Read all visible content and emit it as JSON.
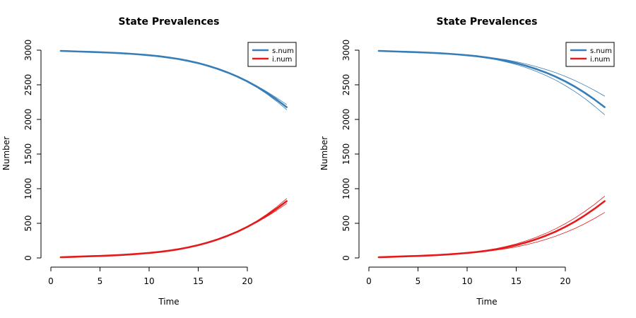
{
  "chart_data": [
    {
      "type": "line",
      "title": "State Prevalences",
      "xlabel": "Time",
      "ylabel": "Number",
      "xlim": [
        0,
        24
      ],
      "ylim": [
        0,
        3000
      ],
      "xticks": [
        0,
        5,
        10,
        15,
        20
      ],
      "yticks": [
        0,
        500,
        1000,
        1500,
        2000,
        2500,
        3000
      ],
      "grid": false,
      "legend_position": "top-right",
      "legend": [
        {
          "label": "s.num",
          "color": "#377EB8"
        },
        {
          "label": "i.num",
          "color": "#E41A1C"
        }
      ],
      "x": [
        1,
        2,
        3,
        4,
        5,
        6,
        7,
        8,
        9,
        10,
        11,
        12,
        13,
        14,
        15,
        16,
        17,
        18,
        19,
        20,
        21,
        22,
        23,
        24
      ],
      "series": [
        {
          "name": "s.num",
          "role": "mean",
          "color": "#377EB8",
          "values": [
            2990,
            2985,
            2980,
            2975,
            2970,
            2964,
            2957,
            2949,
            2939,
            2927,
            2912,
            2894,
            2872,
            2845,
            2813,
            2775,
            2730,
            2678,
            2618,
            2549,
            2471,
            2383,
            2285,
            2178
          ]
        },
        {
          "name": "s.num",
          "role": "simulation",
          "color": "#377EB8",
          "values": [
            2990,
            2985,
            2980,
            2975,
            2970,
            2964,
            2957,
            2949,
            2939,
            2927,
            2912,
            2894,
            2872,
            2845,
            2813,
            2775,
            2731,
            2680,
            2622,
            2556,
            2482,
            2400,
            2310,
            2215
          ]
        },
        {
          "name": "s.num",
          "role": "simulation",
          "color": "#377EB8",
          "values": [
            2990,
            2985,
            2980,
            2975,
            2970,
            2964,
            2957,
            2949,
            2939,
            2927,
            2912,
            2894,
            2872,
            2845,
            2813,
            2774,
            2729,
            2676,
            2614,
            2542,
            2460,
            2366,
            2260,
            2142
          ]
        },
        {
          "name": "i.num",
          "role": "mean",
          "color": "#E41A1C",
          "values": [
            10,
            14,
            19,
            24,
            29,
            35,
            42,
            50,
            60,
            72,
            86,
            104,
            126,
            153,
            185,
            223,
            268,
            320,
            380,
            449,
            527,
            615,
            713,
            820
          ]
        },
        {
          "name": "i.num",
          "role": "simulation",
          "color": "#E41A1C",
          "values": [
            10,
            14,
            19,
            24,
            29,
            35,
            42,
            50,
            60,
            72,
            86,
            104,
            126,
            153,
            185,
            223,
            267,
            318,
            376,
            442,
            516,
            598,
            688,
            785
          ]
        },
        {
          "name": "i.num",
          "role": "simulation",
          "color": "#E41A1C",
          "values": [
            10,
            14,
            19,
            24,
            29,
            35,
            42,
            50,
            60,
            72,
            86,
            104,
            126,
            153,
            185,
            224,
            269,
            322,
            384,
            456,
            538,
            632,
            738,
            856
          ]
        }
      ]
    },
    {
      "type": "line",
      "title": "State Prevalences",
      "xlabel": "Time",
      "ylabel": "Number",
      "xlim": [
        0,
        24
      ],
      "ylim": [
        0,
        3000
      ],
      "xticks": [
        0,
        5,
        10,
        15,
        20
      ],
      "yticks": [
        0,
        500,
        1000,
        1500,
        2000,
        2500,
        3000
      ],
      "grid": false,
      "legend_position": "top-right",
      "legend": [
        {
          "label": "s.num",
          "color": "#377EB8"
        },
        {
          "label": "i.num",
          "color": "#E41A1C"
        }
      ],
      "x": [
        1,
        2,
        3,
        4,
        5,
        6,
        7,
        8,
        9,
        10,
        11,
        12,
        13,
        14,
        15,
        16,
        17,
        18,
        19,
        20,
        21,
        22,
        23,
        24
      ],
      "series": [
        {
          "name": "s.num",
          "role": "mean",
          "color": "#377EB8",
          "values": [
            2990,
            2985,
            2980,
            2975,
            2970,
            2964,
            2957,
            2949,
            2939,
            2927,
            2912,
            2894,
            2872,
            2845,
            2813,
            2775,
            2730,
            2678,
            2618,
            2549,
            2471,
            2383,
            2285,
            2178
          ]
        },
        {
          "name": "s.num",
          "role": "simulation",
          "color": "#377EB8",
          "values": [
            2990,
            2985,
            2980,
            2975,
            2970,
            2964,
            2958,
            2951,
            2942,
            2931,
            2918,
            2902,
            2883,
            2860,
            2833,
            2801,
            2764,
            2722,
            2675,
            2621,
            2560,
            2492,
            2417,
            2337
          ]
        },
        {
          "name": "s.num",
          "role": "simulation",
          "color": "#377EB8",
          "values": [
            2990,
            2985,
            2980,
            2975,
            2970,
            2964,
            2956,
            2947,
            2936,
            2923,
            2906,
            2886,
            2861,
            2830,
            2793,
            2749,
            2697,
            2637,
            2568,
            2489,
            2400,
            2300,
            2189,
            2068
          ]
        },
        {
          "name": "i.num",
          "role": "mean",
          "color": "#E41A1C",
          "values": [
            10,
            14,
            19,
            24,
            29,
            35,
            42,
            50,
            60,
            72,
            86,
            104,
            126,
            153,
            185,
            223,
            268,
            320,
            380,
            449,
            527,
            615,
            713,
            820
          ]
        },
        {
          "name": "i.num",
          "role": "simulation",
          "color": "#E41A1C",
          "values": [
            10,
            14,
            19,
            24,
            29,
            35,
            41,
            48,
            57,
            68,
            80,
            95,
            113,
            135,
            160,
            190,
            225,
            266,
            313,
            367,
            428,
            496,
            572,
            656
          ]
        },
        {
          "name": "i.num",
          "role": "simulation",
          "color": "#E41A1C",
          "values": [
            10,
            14,
            19,
            24,
            29,
            36,
            43,
            52,
            63,
            76,
            92,
            112,
            137,
            167,
            203,
            246,
            296,
            354,
            420,
            495,
            579,
            673,
            777,
            891
          ]
        }
      ]
    }
  ]
}
